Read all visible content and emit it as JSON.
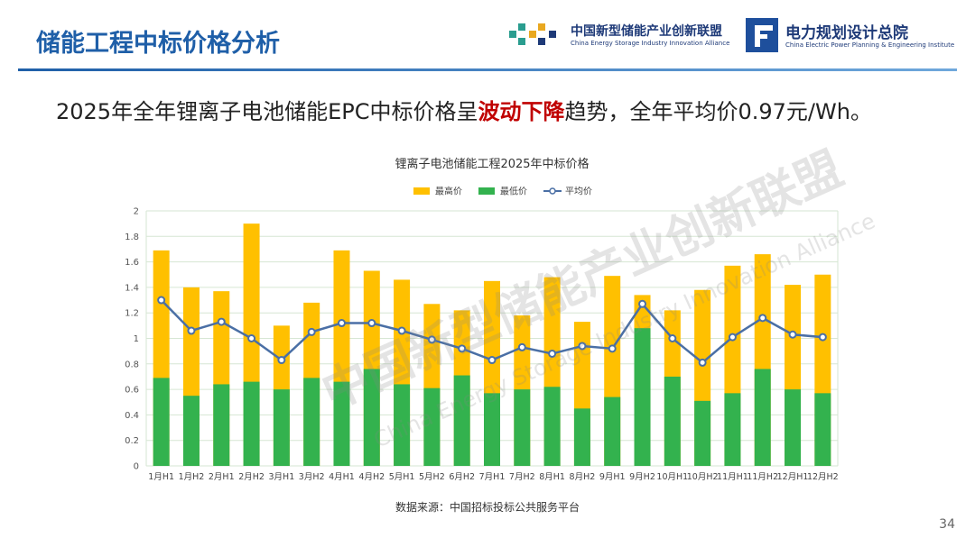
{
  "header": {
    "title": "储能工程中标价格分析",
    "logo1_cn": "中国新型储能产业创新联盟",
    "logo1_en": "China Energy Storage Industry Innovation Alliance",
    "logo2_cn": "电力规划设计总院",
    "logo2_en": "China Electric Power Planning & Engineering Institute"
  },
  "headline": {
    "before": "2025年全年锂离子电池储能EPC中标价格呈",
    "highlight": "波动下降",
    "after": "趋势，全年平均价0.97元/Wh。"
  },
  "watermark": {
    "cn": "中国新型储能产业创新联盟",
    "en": "China Energy Storage Industry Innovation Alliance"
  },
  "chart_data": {
    "type": "bar",
    "title": "锂离子电池储能工程2025年中标价格",
    "categories": [
      "1月H1",
      "1月H2",
      "2月H1",
      "2月H2",
      "3月H1",
      "3月H2",
      "4月H1",
      "4月H2",
      "5月H1",
      "5月H2",
      "6月H2",
      "7月H1",
      "7月H2",
      "8月H1",
      "8月H2",
      "9月H1",
      "9月H2",
      "10月H1",
      "10月H2",
      "11月H1",
      "11月H2",
      "12月H1",
      "12月H2"
    ],
    "series": [
      {
        "name": "最高价",
        "color": "#FFC000",
        "values": [
          1.69,
          1.4,
          1.37,
          1.9,
          1.1,
          1.28,
          1.69,
          1.53,
          1.46,
          1.27,
          1.22,
          1.45,
          1.18,
          1.48,
          1.13,
          1.49,
          1.34,
          1.22,
          1.38,
          1.57,
          1.66,
          1.42,
          1.5
        ]
      },
      {
        "name": "最低价",
        "color": "#33B24E",
        "values": [
          0.69,
          0.55,
          0.64,
          0.66,
          0.6,
          0.69,
          0.66,
          0.76,
          0.64,
          0.61,
          0.71,
          0.57,
          0.6,
          0.62,
          0.45,
          0.54,
          1.08,
          0.7,
          0.51,
          0.57,
          0.76,
          0.6,
          0.57
        ]
      },
      {
        "name": "平均价",
        "color": "#4A6FA5",
        "type": "line",
        "values": [
          1.3,
          1.06,
          1.13,
          1.0,
          0.83,
          1.05,
          1.12,
          1.12,
          1.06,
          0.99,
          0.92,
          0.83,
          0.93,
          0.88,
          0.94,
          0.92,
          1.27,
          1.0,
          0.81,
          1.01,
          1.16,
          1.03,
          1.01
        ]
      }
    ],
    "ylim": [
      0,
      2
    ],
    "yticks": [
      0,
      0.2,
      0.4,
      0.6,
      0.8,
      1,
      1.2,
      1.4,
      1.6,
      1.8,
      2
    ],
    "grid": true,
    "legend": "top"
  },
  "source": "数据来源：中国招标投标公共服务平台",
  "page_number": "34"
}
